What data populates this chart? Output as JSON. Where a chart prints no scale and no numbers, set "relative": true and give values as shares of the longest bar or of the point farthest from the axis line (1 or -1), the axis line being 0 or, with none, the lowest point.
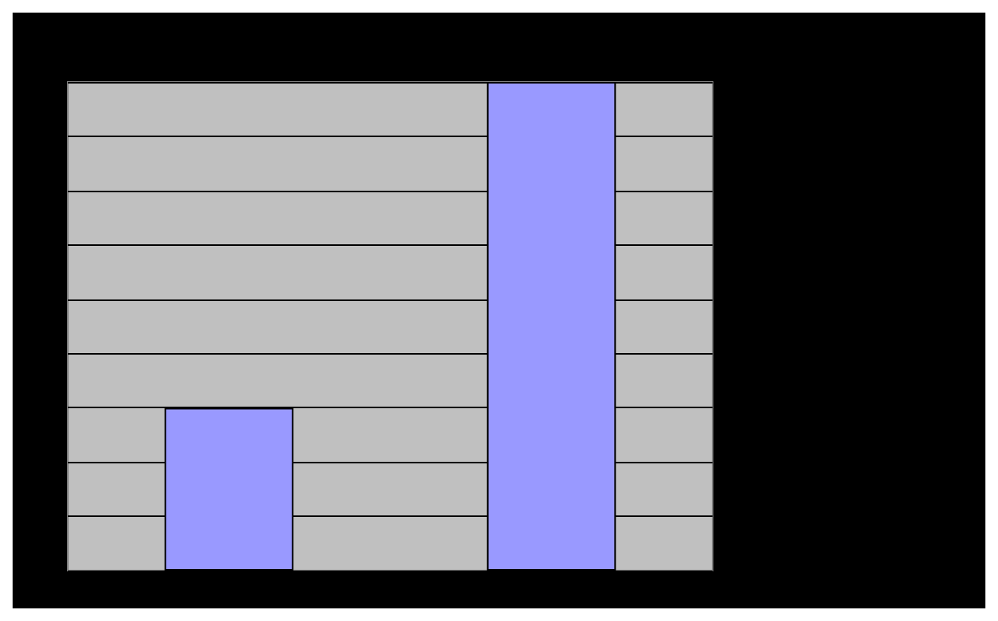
{
  "chart_data": {
    "type": "bar",
    "relative": true,
    "categories": [
      null,
      null
    ],
    "series": [
      {
        "color": "#9999ff",
        "values": [
          0.333,
          1
        ]
      }
    ],
    "grid": "y"
  }
}
